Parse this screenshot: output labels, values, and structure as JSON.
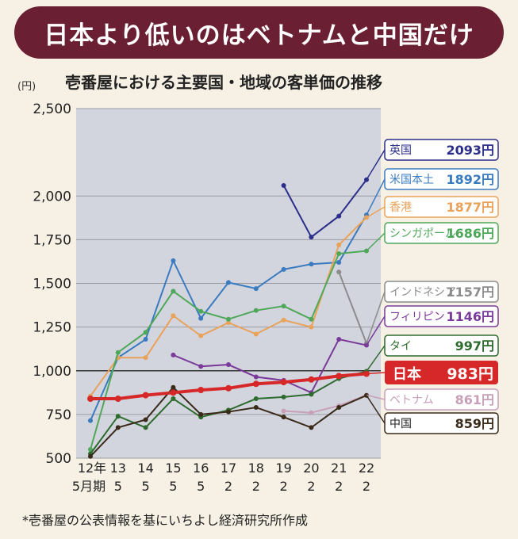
{
  "banner": {
    "title": "日本より低いのはベトナムと中国だけ"
  },
  "subtitle": "壱番屋における主要国・地域の客単価の推移",
  "note": "*壱番屋の公表情報を基にいちよし経済研究所作成",
  "colors": {
    "banner": "#6b1f33",
    "plot_bg": "#d3d5de",
    "uk": "#2b2f8a",
    "us": "#3a7bbf",
    "hk": "#e9a25a",
    "sg": "#4fa85a",
    "id": "#8c8c8c",
    "ph": "#7a3a9a",
    "th": "#2e6b2e",
    "jp": "#d62828",
    "vn": "#c7a0b8",
    "cn": "#3a2a1a"
  },
  "chart_data": {
    "type": "line",
    "title": "壱番屋における主要国・地域の客単価の推移",
    "ylabel": "(円)",
    "ylim": [
      500,
      2500
    ],
    "yticks": [
      500,
      750,
      1000,
      1250,
      1500,
      1750,
      2000,
      2500
    ],
    "ytick_labels": [
      "500",
      "750",
      "1,000",
      "1,250",
      "1,500",
      "1,750",
      "2,000",
      "2,500"
    ],
    "categories": [
      "12年5月期",
      "13/5",
      "14/5",
      "15/5",
      "16/5",
      "17/2",
      "18/2",
      "19/2",
      "20/2",
      "21/2",
      "22/2"
    ],
    "x_labels_top": [
      "12年",
      "13",
      "14",
      "15",
      "16",
      "17",
      "18",
      "19",
      "20",
      "21",
      "22"
    ],
    "x_labels_bottom": [
      "5月期",
      "5",
      "5",
      "5",
      "5",
      "2",
      "2",
      "2",
      "2",
      "2",
      "2"
    ],
    "series": [
      {
        "key": "uk",
        "name": "英国",
        "value_label": "2093円",
        "values": [
          null,
          null,
          null,
          null,
          null,
          null,
          null,
          2060,
          1765,
          1885,
          2093
        ]
      },
      {
        "key": "us",
        "name": "米国本土",
        "value_label": "1892円",
        "values": [
          715,
          1075,
          1180,
          1630,
          1300,
          1505,
          1470,
          1580,
          1610,
          1620,
          1892
        ]
      },
      {
        "key": "hk",
        "name": "香港",
        "value_label": "1877円",
        "values": [
          855,
          1075,
          1075,
          1315,
          1200,
          1275,
          1210,
          1290,
          1250,
          1720,
          1877
        ]
      },
      {
        "key": "sg",
        "name": "シンガポール",
        "value_label": "1686円",
        "values": [
          550,
          1105,
          1220,
          1455,
          1340,
          1295,
          1345,
          1370,
          1295,
          1670,
          1686
        ]
      },
      {
        "key": "id",
        "name": "インドネシア",
        "value_label": "1157円",
        "values": [
          null,
          null,
          null,
          null,
          null,
          null,
          null,
          null,
          null,
          1565,
          1157
        ]
      },
      {
        "key": "ph",
        "name": "フィリピン",
        "value_label": "1146円",
        "values": [
          null,
          null,
          null,
          1090,
          1025,
          1035,
          965,
          945,
          875,
          1180,
          1146
        ]
      },
      {
        "key": "th",
        "name": "タイ",
        "value_label": "997円",
        "values": [
          525,
          740,
          675,
          840,
          735,
          775,
          840,
          850,
          865,
          955,
          997
        ]
      },
      {
        "key": "jp",
        "name": "日本",
        "value_label": "983円",
        "values": [
          840,
          840,
          860,
          875,
          890,
          900,
          925,
          935,
          950,
          970,
          983
        ]
      },
      {
        "key": "vn",
        "name": "ベトナム",
        "value_label": "861円",
        "values": [
          null,
          null,
          null,
          null,
          null,
          null,
          null,
          770,
          760,
          800,
          861
        ]
      },
      {
        "key": "cn",
        "name": "中国",
        "value_label": "859円",
        "values": [
          510,
          675,
          720,
          905,
          750,
          765,
          790,
          735,
          675,
          790,
          859
        ]
      }
    ]
  }
}
